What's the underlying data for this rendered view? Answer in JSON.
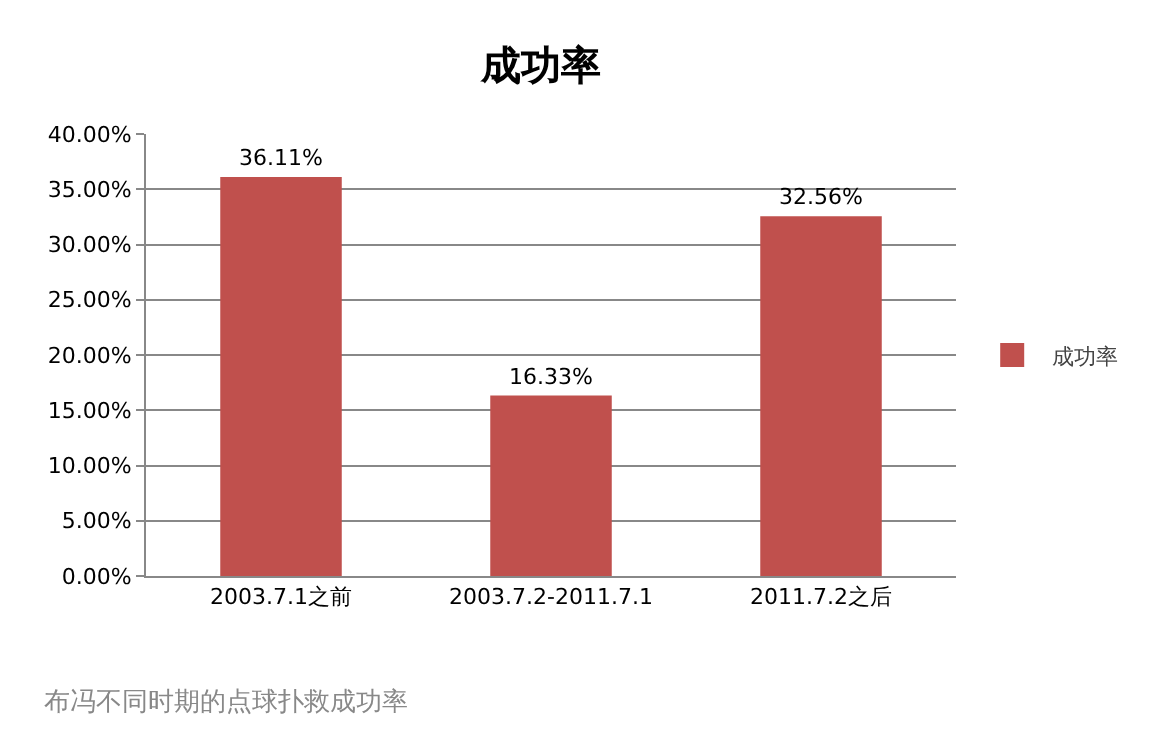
{
  "chart_data": {
    "type": "bar",
    "title": "成功率",
    "categories": [
      "2003.7.1之前",
      "2003.7.2-2011.7.1",
      "2011.7.2之后"
    ],
    "series": [
      {
        "name": "成功率",
        "color": "#c0504d",
        "values": [
          36.11,
          16.33,
          32.56
        ]
      }
    ],
    "value_labels": [
      "36.11%",
      "16.33%",
      "32.56%"
    ],
    "ylim": [
      0,
      40
    ],
    "yticks": [
      {
        "value": 0,
        "label": "0.00%"
      },
      {
        "value": 5,
        "label": "5.00%"
      },
      {
        "value": 10,
        "label": "10.00%"
      },
      {
        "value": 15,
        "label": "15.00%"
      },
      {
        "value": 20,
        "label": "20.00%"
      },
      {
        "value": 25,
        "label": "25.00%"
      },
      {
        "value": 30,
        "label": "30.00%"
      },
      {
        "value": 35,
        "label": "35.00%"
      },
      {
        "value": 40,
        "label": "40.00%"
      }
    ],
    "grid": "y",
    "legend": "right",
    "annotations": [
      "布冯不同时期的点球扑救成功率"
    ]
  }
}
